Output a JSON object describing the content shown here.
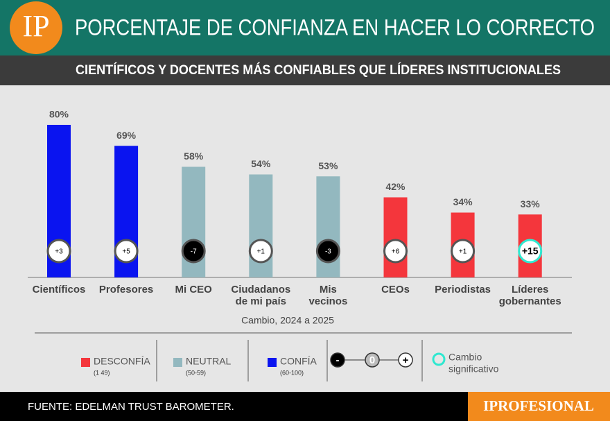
{
  "chart_data": {
    "type": "bar",
    "logo": "IP",
    "title": "PORCENTAJE DE CONFIANZA EN HACER LO CORRECTO",
    "subtitle": "CIENTÍFICOS Y DOCENTES MÁS CONFIABLES QUE LÍDERES INSTITUCIONALES",
    "categories": [
      [
        "Científicos"
      ],
      [
        "Profesores"
      ],
      [
        "Mi CEO"
      ],
      [
        "Ciudadanos",
        "de mi país"
      ],
      [
        "Mis",
        "vecinos"
      ],
      [
        "CEOs"
      ],
      [
        "Periodistas"
      ],
      [
        "Líderes",
        "gobernantes"
      ]
    ],
    "values": [
      80,
      69,
      58,
      54,
      53,
      42,
      34,
      33
    ],
    "value_labels": [
      "80%",
      "69%",
      "58%",
      "54%",
      "53%",
      "42%",
      "34%",
      "33%"
    ],
    "colors": [
      "#0a14f0",
      "#0a14f0",
      "#93b8bf",
      "#93b8bf",
      "#93b8bf",
      "#f4363c",
      "#f4363c",
      "#f4363c"
    ],
    "changes": {
      "values": [
        3,
        5,
        -7,
        1,
        -3,
        6,
        1,
        15
      ],
      "value_labels": [
        "+3",
        "+5",
        "-7",
        "+1",
        "-3",
        "+6",
        "+1",
        "+15"
      ],
      "significant": [
        false,
        false,
        false,
        false,
        false,
        false,
        false,
        true
      ]
    },
    "x_label": "Cambio, 2024 a 2025",
    "legend": {
      "items": [
        {
          "label": "DESCONFÍA",
          "range": "(1 49)",
          "color": "#f4363c"
        },
        {
          "label": "NEUTRAL",
          "range": "(50-59)",
          "color": "#93b8bf"
        },
        {
          "label": "CONFÍA",
          "range": "(60-100)",
          "color": "#0a14f0"
        }
      ],
      "scale": [
        "-",
        "0",
        "+"
      ],
      "significant": [
        "Cambio",
        "significativo"
      ],
      "significant_color": "#2ee8d0"
    },
    "source": "FUENTE: EDELMAN TRUST BAROMETER.",
    "brand": "IPROFESIONAL"
  }
}
